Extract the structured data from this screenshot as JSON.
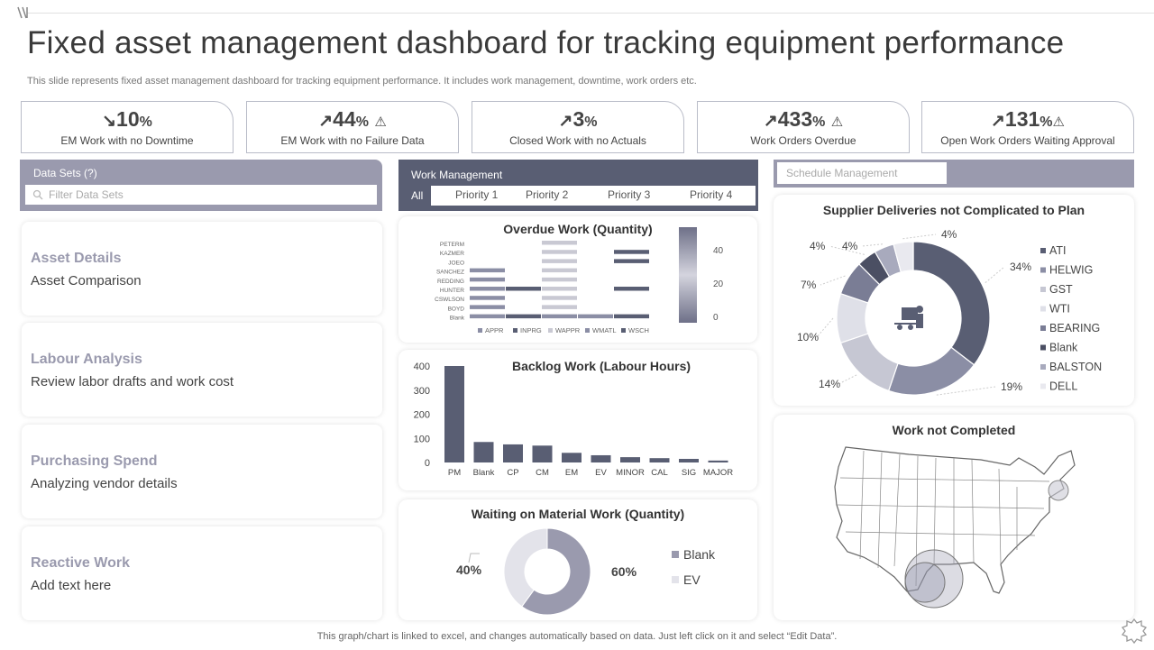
{
  "page": {
    "title": "Fixed asset management  dashboard for tracking equipment performance",
    "subtitle": "This slide represents fixed asset management dashboard for tracking equipment performance. It includes work management, downtime, work orders etc.",
    "footer": "This graph/chart is linked to excel,  and changes automatically based on data. Just left click on it and select “Edit Data”."
  },
  "kpis": [
    {
      "arrow": "↘",
      "value": "10",
      "unit": "%",
      "warn": "",
      "label": "EM Work with no Downtime"
    },
    {
      "arrow": "↗",
      "value": "44",
      "unit": "%",
      "warn": "⚠",
      "label": "EM Work with no Failure Data"
    },
    {
      "arrow": "↗",
      "value": "3",
      "unit": "%",
      "warn": "",
      "label": "Closed Work with no Actuals"
    },
    {
      "arrow": "↗",
      "value": "433",
      "unit": "%",
      "warn": "⚠",
      "label": "Work Orders Overdue"
    },
    {
      "arrow": "↗",
      "value": "131",
      "unit": "%",
      "warn": "⚠",
      "label": "Open Work Orders Waiting Approval"
    }
  ],
  "datasets": {
    "title": "Data Sets (?)",
    "filter_placeholder": "Filter Data Sets",
    "cards": [
      {
        "heading": "Asset Details",
        "sub": "Asset Comparison"
      },
      {
        "heading": "Labour Analysis",
        "sub": "Review labor drafts and work cost"
      },
      {
        "heading": "Purchasing Spend",
        "sub": "Analyzing vendor details"
      },
      {
        "heading": "Reactive Work",
        "sub": "Add text here"
      }
    ]
  },
  "work_management": {
    "title": "Work Management",
    "tabs": [
      "All",
      "Priority 1",
      "Priority 2",
      "Priority 3",
      "Priority 4"
    ]
  },
  "schedule": {
    "label": "Schedule Management"
  },
  "colors": {
    "dark": "#595e73",
    "mid": "#8b8ea5",
    "light": "#c9c9d3",
    "pale": "#e3e3ea",
    "accent": "#9a9aae"
  },
  "chart_data": [
    {
      "type": "heatmap",
      "title": "Overdue Work (Quantity)",
      "rows": [
        "PETERM",
        "KAZMER",
        "JOEO",
        "SANCHEZ",
        "REDDING",
        "HUNTER",
        "CSWLSON",
        "BOYD",
        "Blank"
      ],
      "columns": [
        "APPR",
        "INPRG",
        "WAPPR",
        "WMATL",
        "WSCH"
      ],
      "scale_ticks": [
        40,
        20,
        0
      ]
    },
    {
      "type": "bar",
      "title": "Backlog Work (Labour Hours)",
      "categories": [
        "PM",
        "Blank",
        "CP",
        "CM",
        "EM",
        "EV",
        "MINOR",
        "CAL",
        "SIG",
        "MAJOR"
      ],
      "values": [
        400,
        85,
        75,
        70,
        40,
        30,
        22,
        18,
        15,
        8
      ],
      "ylim": [
        0,
        400
      ],
      "yticks": [
        0,
        100,
        200,
        300,
        400
      ]
    },
    {
      "type": "pie",
      "title": "Waiting on Material Work (Quantity)",
      "labels": [
        "Blank",
        "EV"
      ],
      "values": [
        60,
        40
      ],
      "value_labels": [
        "60%",
        "40%"
      ],
      "colors": [
        "#9a9aae",
        "#e3e3ea"
      ]
    },
    {
      "type": "pie",
      "title": "Supplier Deliveries not Complicated to Plan",
      "labels": [
        "ATI",
        "HELWIG",
        "GST",
        "WTI",
        "BEARING",
        "Blank",
        "BALSTON",
        "DELL"
      ],
      "values": [
        34,
        19,
        14,
        10,
        7,
        4,
        4,
        4
      ],
      "value_labels": [
        "34%",
        "19%",
        "14%",
        "10%",
        "7%",
        "4%",
        "4%",
        "4%"
      ],
      "colors": [
        "#595e73",
        "#8b8ea5",
        "#c6c7d3",
        "#dfe0e8",
        "#7a7d95",
        "#4b4f63",
        "#a8aabd",
        "#e9e9ef"
      ]
    }
  ],
  "map": {
    "title": "Work not Completed"
  }
}
